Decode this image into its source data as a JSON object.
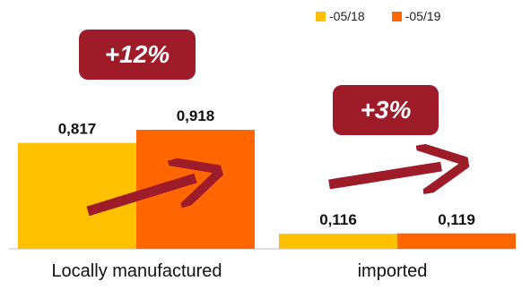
{
  "chart_data": {
    "type": "bar",
    "categories": [
      "Locally manufactured",
      "imported"
    ],
    "series": [
      {
        "name": "-05/18",
        "color": "#FFC000",
        "values": [
          0.817,
          0.116
        ],
        "labels": [
          "0,817",
          "0,116"
        ]
      },
      {
        "name": "-05/19",
        "color": "#FF6600",
        "values": [
          0.918,
          0.119
        ],
        "labels": [
          "0,918",
          "0,119"
        ]
      }
    ],
    "ylim": [
      0,
      1.2
    ],
    "grid": false,
    "legend": "top-right",
    "annotations": [
      {
        "text": "+12%",
        "category": "Locally manufactured",
        "arrow": "up-right"
      },
      {
        "text": "+3%",
        "category": "imported",
        "arrow": "up-right"
      }
    ],
    "annotation_color": "#9E1C2A"
  }
}
